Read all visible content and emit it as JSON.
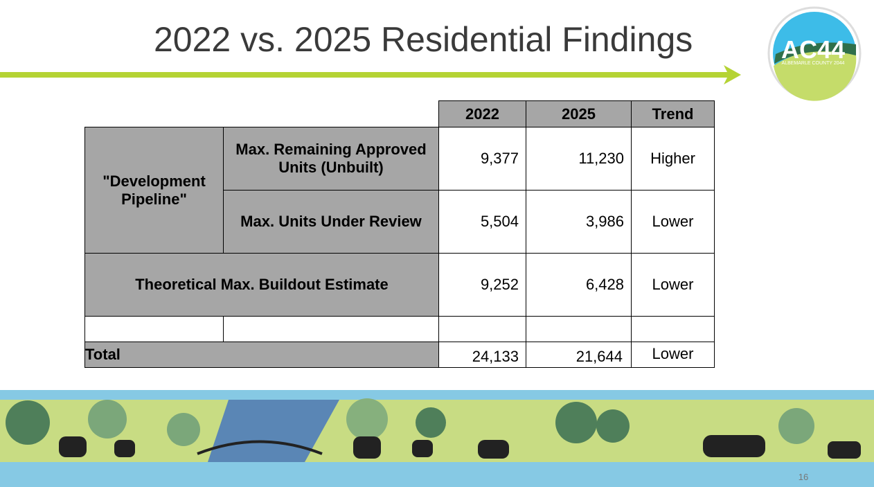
{
  "header": {
    "title": "2022 vs. 2025 Residential Findings"
  },
  "logo": {
    "mark": "AC44",
    "caption": "ALBEMARLE COUNTY 2044"
  },
  "table": {
    "columns": [
      "2022",
      "2025",
      "Trend"
    ],
    "group": "\"Development Pipeline\"",
    "rows": [
      {
        "label": "Max. Remaining Approved Units (Unbuilt)",
        "cells": [
          "9,377",
          "11,230",
          "Higher"
        ]
      },
      {
        "label": "Max. Units Under Review",
        "cells": [
          "5,504",
          "3,986",
          "Lower"
        ]
      },
      {
        "label": "Theoretical Max. Buildout Estimate",
        "cells": [
          "9,252",
          "6,428",
          "Lower"
        ]
      }
    ],
    "total": {
      "label": "Total",
      "cells": [
        "24,133",
        "21,644",
        "Lower"
      ]
    }
  },
  "footer": {
    "page": "16"
  }
}
